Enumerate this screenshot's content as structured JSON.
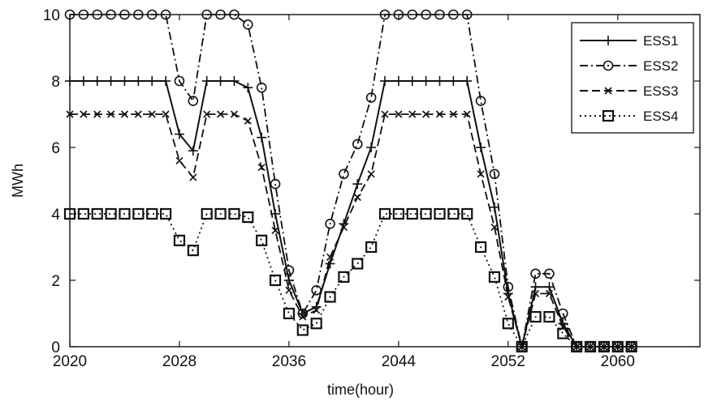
{
  "chart_data": {
    "type": "line",
    "title": "",
    "xlabel": "time(hour)",
    "ylabel": "MWh",
    "xlim": [
      2020,
      2066
    ],
    "ylim": [
      0,
      10
    ],
    "xticks": [
      2020,
      2028,
      2036,
      2044,
      2052,
      2060
    ],
    "yticks": [
      0,
      2,
      4,
      6,
      8,
      10
    ],
    "grid": false,
    "legend_position": "top-right",
    "series": [
      {
        "name": "ESS1",
        "line": "solid",
        "marker": "plus",
        "x": [
          2020,
          2021,
          2022,
          2023,
          2024,
          2025,
          2026,
          2027,
          2028,
          2029,
          2030,
          2031,
          2032,
          2033,
          2034,
          2035,
          2036,
          2037,
          2038,
          2039,
          2040,
          2041,
          2042,
          2043,
          2044,
          2045,
          2046,
          2047,
          2048,
          2049,
          2050,
          2051,
          2052,
          2053,
          2054,
          2055,
          2056,
          2057,
          2058,
          2059,
          2060,
          2061
        ],
        "y": [
          8,
          8,
          8,
          8,
          8,
          8,
          8,
          8,
          6.4,
          5.9,
          8,
          8,
          8,
          7.8,
          6.3,
          4.0,
          2.0,
          1.0,
          1.2,
          2.5,
          3.7,
          4.9,
          6.0,
          8,
          8,
          8,
          8,
          8,
          8,
          8,
          6.0,
          4.2,
          1.6,
          0,
          1.8,
          1.8,
          0.7,
          0,
          0,
          0,
          0,
          0
        ]
      },
      {
        "name": "ESS2",
        "line": "dashdot",
        "marker": "circle",
        "x": [
          2020,
          2021,
          2022,
          2023,
          2024,
          2025,
          2026,
          2027,
          2028,
          2029,
          2030,
          2031,
          2032,
          2033,
          2034,
          2035,
          2036,
          2037,
          2038,
          2039,
          2040,
          2041,
          2042,
          2043,
          2044,
          2045,
          2046,
          2047,
          2048,
          2049,
          2050,
          2051,
          2052,
          2053,
          2054,
          2055,
          2056,
          2057,
          2058,
          2059,
          2060,
          2061
        ],
        "y": [
          10,
          10,
          10,
          10,
          10,
          10,
          10,
          10,
          8.0,
          7.4,
          10,
          10,
          10,
          9.7,
          7.8,
          4.9,
          2.3,
          1.0,
          1.7,
          3.7,
          5.2,
          6.1,
          7.5,
          10,
          10,
          10,
          10,
          10,
          10,
          10,
          7.4,
          5.2,
          1.8,
          0,
          2.2,
          2.2,
          1.0,
          0,
          0,
          0,
          0,
          0
        ]
      },
      {
        "name": "ESS3",
        "line": "dashed",
        "marker": "x",
        "x": [
          2020,
          2021,
          2022,
          2023,
          2024,
          2025,
          2026,
          2027,
          2028,
          2029,
          2030,
          2031,
          2032,
          2033,
          2034,
          2035,
          2036,
          2037,
          2038,
          2039,
          2040,
          2041,
          2042,
          2043,
          2044,
          2045,
          2046,
          2047,
          2048,
          2049,
          2050,
          2051,
          2052,
          2053,
          2054,
          2055,
          2056,
          2057,
          2058,
          2059,
          2060,
          2061
        ],
        "y": [
          7,
          7,
          7,
          7,
          7,
          7,
          7,
          7,
          5.6,
          5.1,
          7,
          7,
          7,
          6.8,
          5.4,
          3.5,
          1.7,
          0.9,
          1.1,
          2.7,
          3.6,
          4.5,
          5.2,
          7,
          7,
          7,
          7,
          7,
          7,
          7,
          5.2,
          3.6,
          1.5,
          0,
          1.6,
          1.6,
          0.6,
          0,
          0,
          0,
          0,
          0
        ]
      },
      {
        "name": "ESS4",
        "line": "dotted",
        "marker": "square",
        "x": [
          2020,
          2021,
          2022,
          2023,
          2024,
          2025,
          2026,
          2027,
          2028,
          2029,
          2030,
          2031,
          2032,
          2033,
          2034,
          2035,
          2036,
          2037,
          2038,
          2039,
          2040,
          2041,
          2042,
          2043,
          2044,
          2045,
          2046,
          2047,
          2048,
          2049,
          2050,
          2051,
          2052,
          2053,
          2054,
          2055,
          2056,
          2057,
          2058,
          2059,
          2060,
          2061
        ],
        "y": [
          4,
          4,
          4,
          4,
          4,
          4,
          4,
          4,
          3.2,
          2.9,
          4,
          4,
          4,
          3.9,
          3.2,
          2.0,
          1.0,
          0.5,
          0.7,
          1.5,
          2.1,
          2.5,
          3.0,
          4,
          4,
          4,
          4,
          4,
          4,
          4,
          3.0,
          2.1,
          0.7,
          0,
          0.9,
          0.9,
          0.4,
          0,
          0,
          0,
          0,
          0
        ]
      }
    ]
  }
}
